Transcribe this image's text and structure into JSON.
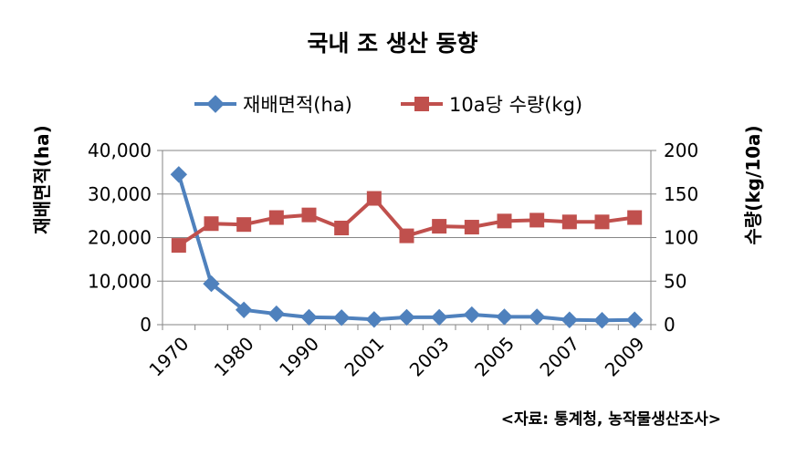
{
  "chart_data": {
    "type": "line",
    "title": "국내 조 생산 동향",
    "ylabel_left": "재배면적(ha)",
    "ylabel_right": "수량(kg/10a)",
    "source": "<자료: 통계청, 농작물생산조사>",
    "ylim_left": [
      0,
      40000
    ],
    "ylim_right": [
      0,
      200
    ],
    "yticks_left": [
      "0",
      "10,000",
      "20,000",
      "30,000",
      "40,000"
    ],
    "yticks_right": [
      "0",
      "50",
      "100",
      "150",
      "200"
    ],
    "x_tick_labels": [
      "1970",
      "1980",
      "1990",
      "2001",
      "2003",
      "2005",
      "2007",
      "2009"
    ],
    "legend_position": "top",
    "grid": "horizontal",
    "series": [
      {
        "name": "재배면적(ha)",
        "axis": "left",
        "color": "#4f81bd",
        "marker": "diamond",
        "values": [
          34500,
          9400,
          3400,
          2500,
          1700,
          1600,
          1200,
          1700,
          1700,
          2300,
          1800,
          1800,
          1100,
          1000,
          1100
        ]
      },
      {
        "name": "10a당 수량(kg)",
        "axis": "right",
        "color": "#c0504d",
        "marker": "square",
        "values": [
          91,
          116,
          115,
          123,
          126,
          111,
          145,
          102,
          113,
          112,
          119,
          120,
          118,
          118,
          123
        ]
      }
    ]
  }
}
